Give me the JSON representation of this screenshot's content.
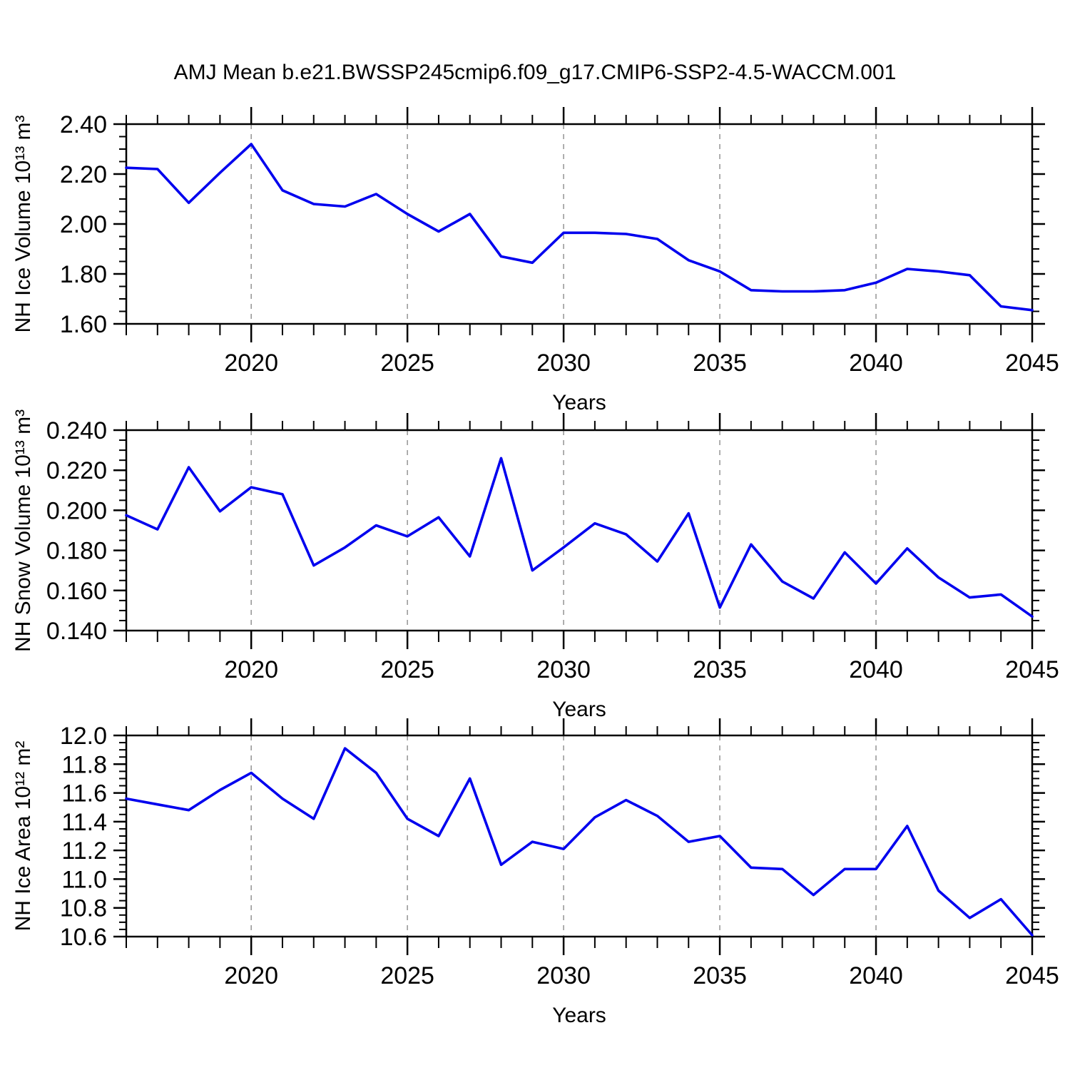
{
  "title": "AMJ Mean b.e21.BWSSP245cmip6.f09_g17.CMIP6-SSP2-4.5-WACCM.001",
  "colors": {
    "line": "#0000ee",
    "grid": "#9a9a9a",
    "frame": "#000000",
    "text": "#000000",
    "background": "#ffffff"
  },
  "chart_data": [
    {
      "type": "line",
      "name": "nh-ice-volume",
      "ylabel": "NH Ice Volume 10¹³ m³",
      "xlabel": "Years",
      "x": [
        2016,
        2017,
        2018,
        2019,
        2020,
        2021,
        2022,
        2023,
        2024,
        2025,
        2026,
        2027,
        2028,
        2029,
        2030,
        2031,
        2032,
        2033,
        2034,
        2035,
        2036,
        2037,
        2038,
        2039,
        2040,
        2041,
        2042,
        2043,
        2044,
        2045
      ],
      "values": [
        2.225,
        2.22,
        2.085,
        2.205,
        2.32,
        2.135,
        2.08,
        2.07,
        2.12,
        2.04,
        1.97,
        2.04,
        1.87,
        1.845,
        1.965,
        1.965,
        1.96,
        1.94,
        1.855,
        1.81,
        1.735,
        1.73,
        1.73,
        1.735,
        1.765,
        1.82,
        1.81,
        1.795,
        1.67,
        1.655
      ],
      "xlim": [
        2016,
        2045
      ],
      "ylim": [
        1.6,
        2.4
      ],
      "yticks": {
        "major": 0.2,
        "minor": 0.05,
        "decimals": 2,
        "labels": [
          "1.60",
          "1.80",
          "2.00",
          "2.20",
          "2.40"
        ]
      },
      "xticks": {
        "major": 5,
        "minor": 1,
        "labels": [
          2020,
          2025,
          2030,
          2035,
          2040,
          2045
        ]
      },
      "gridlines_x": [
        2020,
        2025,
        2030,
        2035,
        2040
      ],
      "grid": "vertical-dashed",
      "legend": "none"
    },
    {
      "type": "line",
      "name": "nh-snow-volume",
      "ylabel": "NH Snow Volume 10¹³ m³",
      "xlabel": "Years",
      "x": [
        2016,
        2017,
        2018,
        2019,
        2020,
        2021,
        2022,
        2023,
        2024,
        2025,
        2026,
        2027,
        2028,
        2029,
        2030,
        2031,
        2032,
        2033,
        2034,
        2035,
        2036,
        2037,
        2038,
        2039,
        2040,
        2041,
        2042,
        2043,
        2044,
        2045
      ],
      "values": [
        0.1975,
        0.1905,
        0.2215,
        0.1995,
        0.2115,
        0.208,
        0.1725,
        0.1815,
        0.1925,
        0.187,
        0.1965,
        0.177,
        0.226,
        0.17,
        0.1815,
        0.1935,
        0.188,
        0.1745,
        0.1985,
        0.1515,
        0.183,
        0.1645,
        0.156,
        0.179,
        0.1635,
        0.181,
        0.1665,
        0.1565,
        0.158,
        0.147
      ],
      "xlim": [
        2016,
        2045
      ],
      "ylim": [
        0.14,
        0.24
      ],
      "yticks": {
        "major": 0.02,
        "minor": 0.005,
        "decimals": 3,
        "labels": [
          "0.140",
          "0.160",
          "0.180",
          "0.200",
          "0.220",
          "0.240"
        ]
      },
      "xticks": {
        "major": 5,
        "minor": 1,
        "labels": [
          2020,
          2025,
          2030,
          2035,
          2040,
          2045
        ]
      },
      "gridlines_x": [
        2020,
        2025,
        2030,
        2035,
        2040
      ],
      "grid": "vertical-dashed",
      "legend": "none"
    },
    {
      "type": "line",
      "name": "nh-ice-area",
      "ylabel": "NH Ice Area 10¹² m²",
      "xlabel": "Years",
      "x": [
        2016,
        2017,
        2018,
        2019,
        2020,
        2021,
        2022,
        2023,
        2024,
        2025,
        2026,
        2027,
        2028,
        2029,
        2030,
        2031,
        2032,
        2033,
        2034,
        2035,
        2036,
        2037,
        2038,
        2039,
        2040,
        2041,
        2042,
        2043,
        2044,
        2045
      ],
      "values": [
        11.56,
        11.52,
        11.48,
        11.62,
        11.74,
        11.56,
        11.42,
        11.91,
        11.74,
        11.42,
        11.3,
        11.7,
        11.1,
        11.26,
        11.21,
        11.43,
        11.55,
        11.44,
        11.26,
        11.3,
        11.08,
        11.07,
        10.89,
        11.07,
        11.07,
        11.37,
        10.92,
        10.73,
        10.86,
        10.61
      ],
      "xlim": [
        2016,
        2045
      ],
      "ylim": [
        10.6,
        12.0
      ],
      "yticks": {
        "major": 0.2,
        "minor": 0.05,
        "decimals": 1,
        "labels": [
          "10.6",
          "10.8",
          "11.0",
          "11.2",
          "11.4",
          "11.6",
          "11.8",
          "12.0"
        ]
      },
      "xticks": {
        "major": 5,
        "minor": 1,
        "labels": [
          2020,
          2025,
          2030,
          2035,
          2040,
          2045
        ]
      },
      "gridlines_x": [
        2020,
        2025,
        2030,
        2035,
        2040
      ],
      "grid": "vertical-dashed",
      "legend": "none"
    }
  ]
}
